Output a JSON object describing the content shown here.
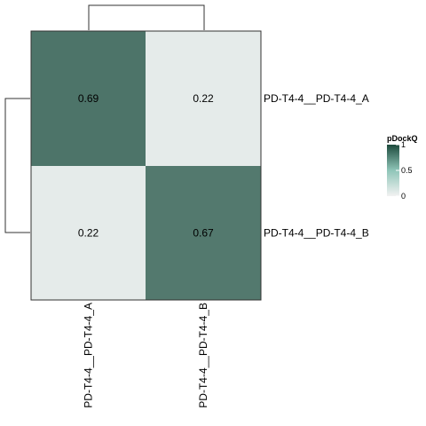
{
  "chart_data": {
    "type": "heatmap",
    "rows": [
      "PD-T4-4__PD-T4-4_A",
      "PD-T4-4__PD-T4-4_B"
    ],
    "columns": [
      "PD-T4-4__PD-T4-4_A",
      "PD-T4-4__PD-T4-4_B"
    ],
    "values": [
      [
        0.69,
        0.22
      ],
      [
        0.22,
        0.67
      ]
    ],
    "cell_labels": [
      [
        "0.69",
        "0.22"
      ],
      [
        "0.22",
        "0.67"
      ]
    ],
    "color_scale": {
      "low": "#f2f2f2",
      "mid": "#8fc5b8",
      "high": "#1d4a3c",
      "min": 0,
      "max": 1
    },
    "legend": {
      "title": "pDockQ",
      "ticks": [
        "1",
        "0.5",
        "0"
      ],
      "tick_values": [
        1,
        0.5,
        0
      ],
      "placement": "right"
    },
    "dendrogram": {
      "rows": true,
      "columns": true
    }
  },
  "colors": {
    "cell_high": "#4d7469",
    "cell_low": "#ebf0ef",
    "border": "#333333",
    "dendrogram": "#333333"
  }
}
